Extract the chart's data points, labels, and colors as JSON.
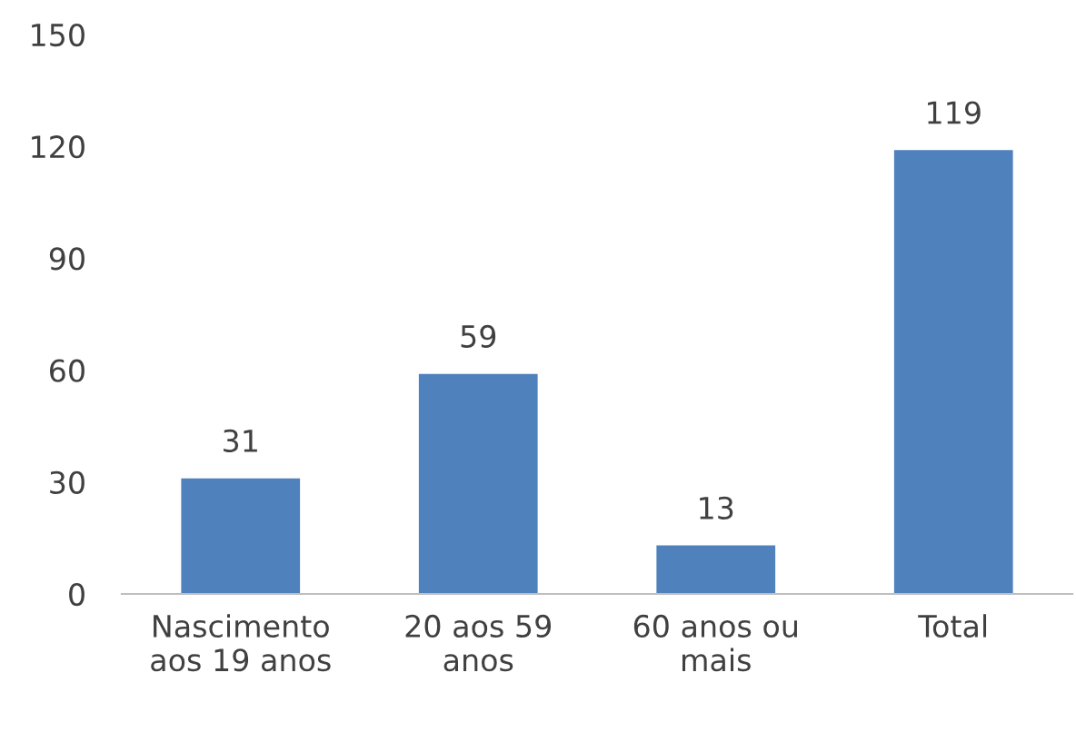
{
  "chart_data": {
    "type": "bar",
    "categories": [
      "Nascimento\naos 19 anos",
      "20 aos 59\nanos",
      "60 anos ou\nmais",
      "Total"
    ],
    "values": [
      31,
      59,
      13,
      119
    ],
    "color": "#4f81bd",
    "ylim": [
      0,
      150
    ],
    "yticks": [
      0,
      30,
      60,
      90,
      120,
      150
    ],
    "data_labels": true,
    "grid": false,
    "legend": false
  }
}
